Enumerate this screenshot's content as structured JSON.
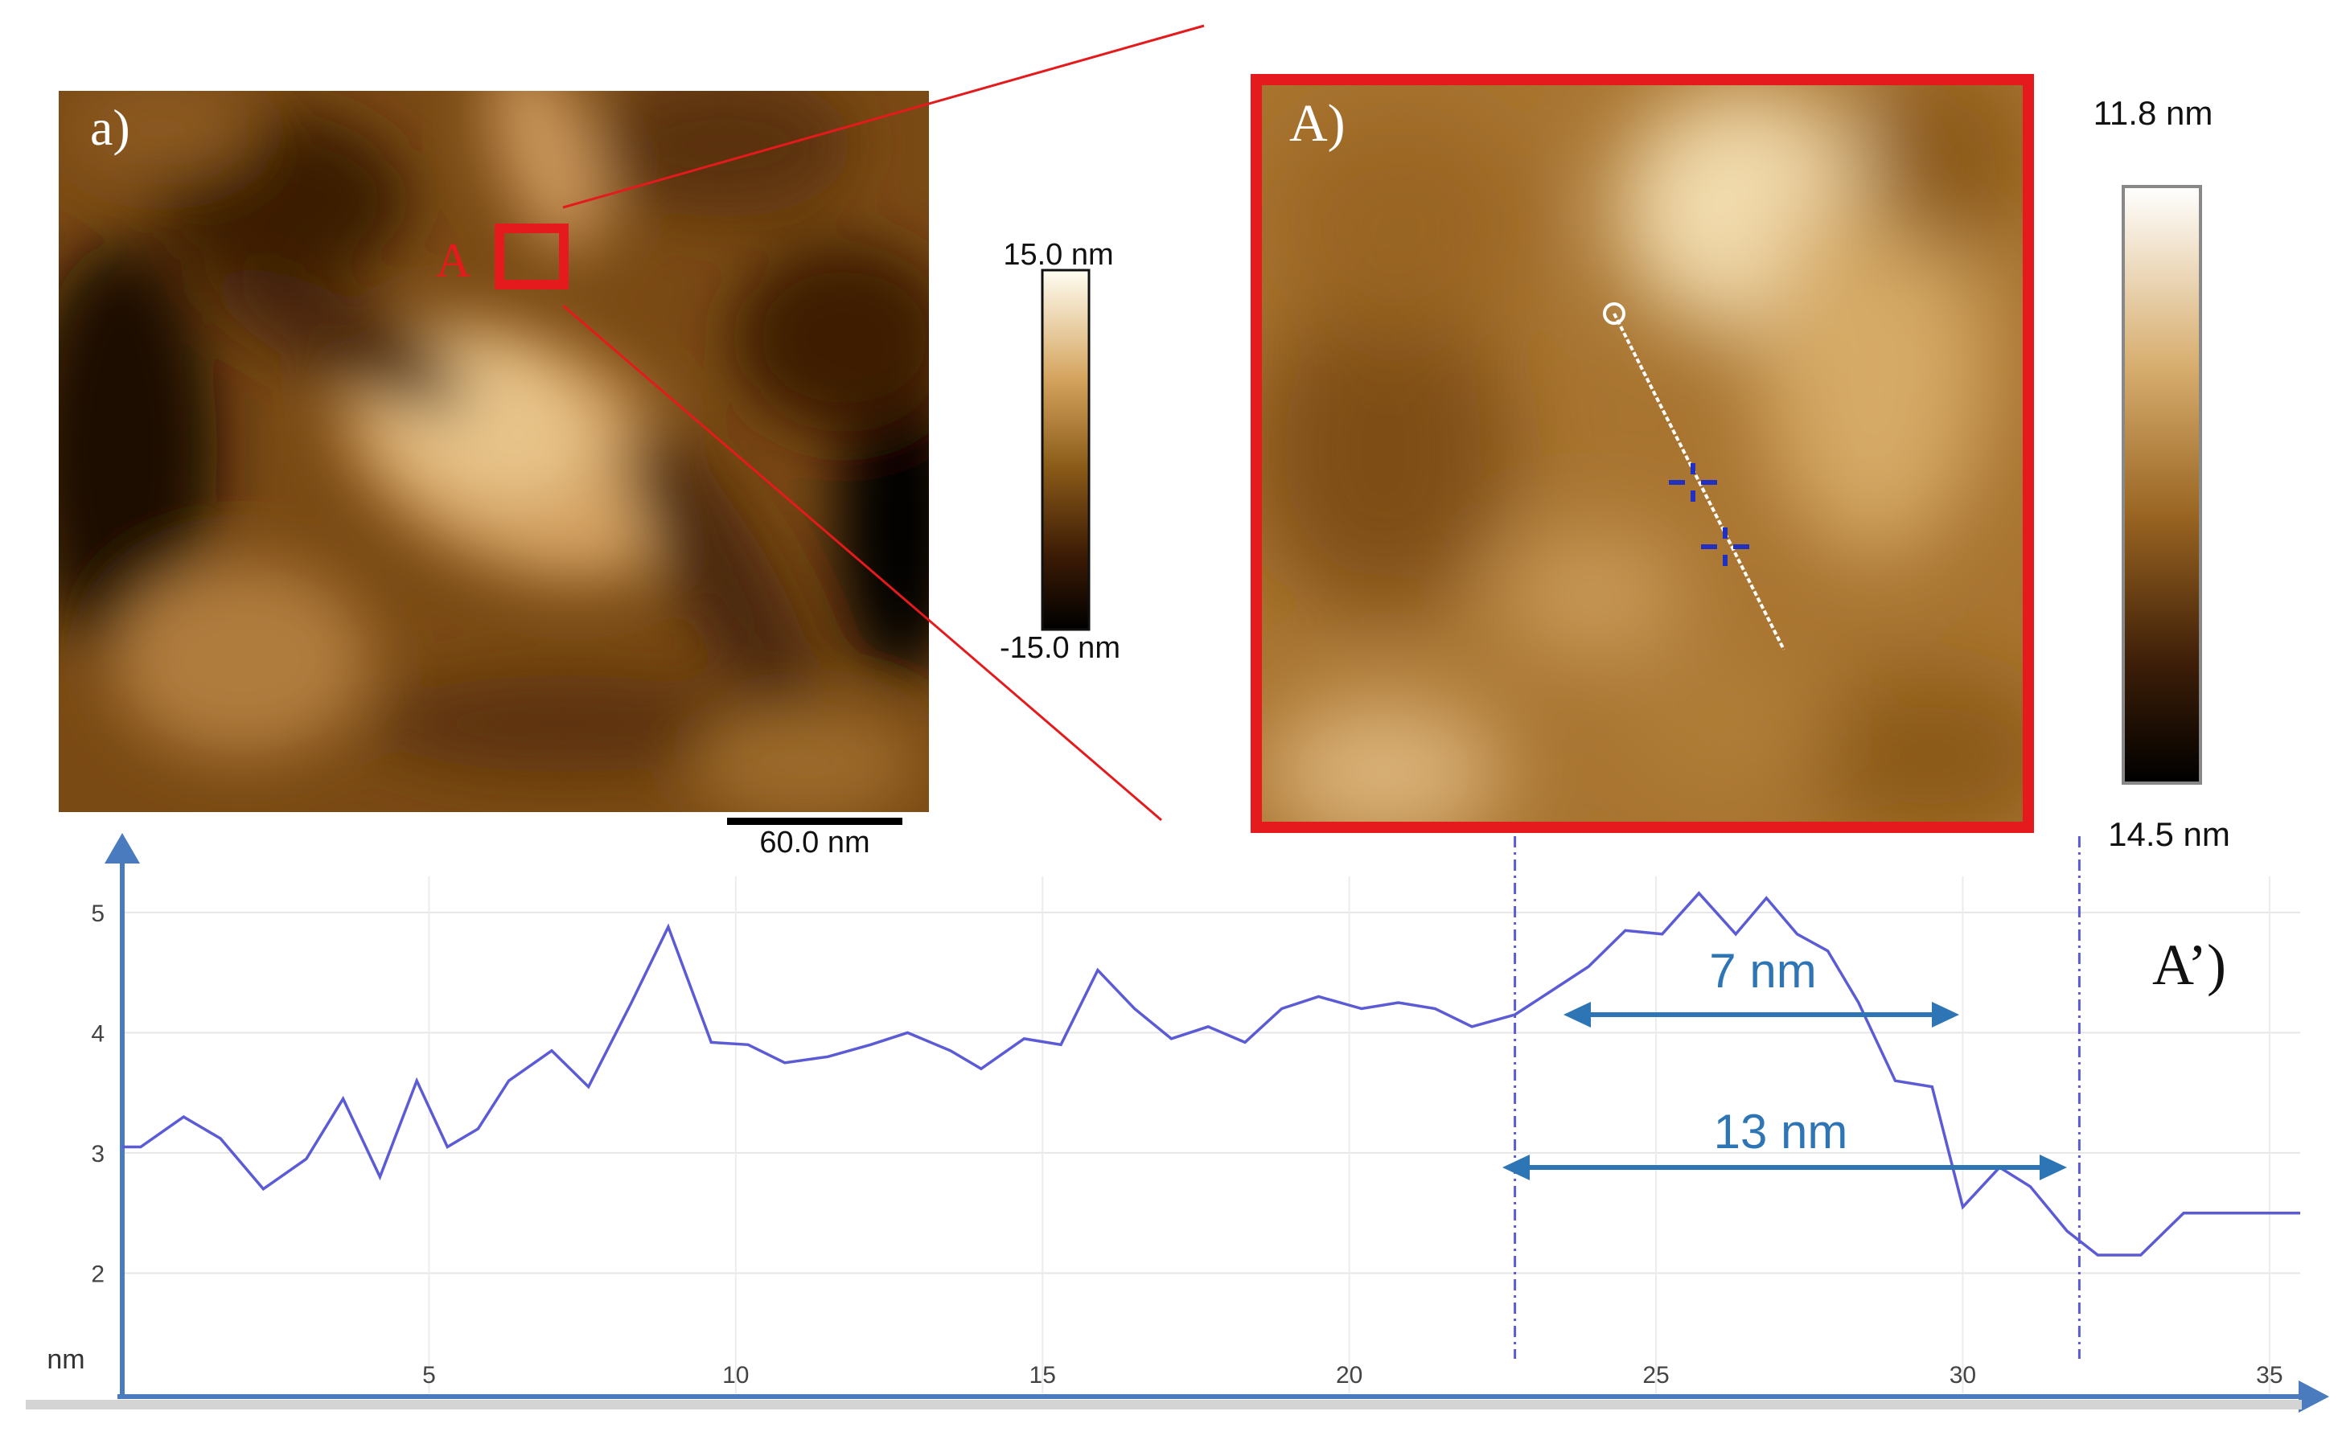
{
  "panel_a": {
    "label": "a)",
    "region_label": "A",
    "scale_bar": "60.0 nm",
    "colorbar": {
      "top": "15.0 nm",
      "bottom": "-15.0 nm"
    }
  },
  "panel_A": {
    "label": "A)",
    "colorbar": {
      "top": "11.8 nm",
      "bottom": "14.5 nm"
    }
  },
  "profile": {
    "label": "A’)",
    "annotation_short": "7 nm",
    "annotation_long": "13 nm"
  },
  "colors": {
    "profile_line": "#5b5bd6",
    "axis": "#4a7bbf",
    "annotation": "#2e75b6",
    "highlight": "#e41a1c"
  },
  "chart_data": {
    "type": "line",
    "title": "",
    "xlabel": "",
    "ylabel": "nm",
    "xlim": [
      0,
      35.5
    ],
    "ylim": [
      1.0,
      5.3
    ],
    "xticks": [
      5,
      10,
      15,
      20,
      25,
      30,
      35
    ],
    "yticks": [
      2,
      3,
      4,
      5
    ],
    "series": [
      {
        "x": [
          0,
          0.3,
          1.0,
          1.6,
          2.3,
          3.0,
          3.6,
          4.2,
          4.8,
          5.3,
          5.8,
          6.3,
          7.0,
          7.6,
          8.3,
          8.9,
          9.6,
          10.2,
          10.8,
          11.5,
          12.2,
          12.8,
          13.5,
          14.0,
          14.7,
          15.3,
          15.9,
          16.5,
          17.1,
          17.7,
          18.3,
          18.9,
          19.5,
          20.2,
          20.8,
          21.4,
          22.0,
          22.7,
          23.3,
          23.9,
          24.5,
          25.1,
          25.7,
          26.3,
          26.8,
          27.3,
          27.8,
          28.3,
          28.9,
          29.5,
          30.0,
          30.6,
          31.1,
          31.7,
          32.2,
          32.9,
          33.6,
          34.2,
          34.8,
          35.5
        ],
        "y": [
          3.05,
          3.05,
          3.3,
          3.12,
          2.7,
          2.95,
          3.45,
          2.8,
          3.6,
          3.05,
          3.2,
          3.6,
          3.85,
          3.55,
          4.25,
          4.88,
          3.92,
          3.9,
          3.75,
          3.8,
          3.9,
          4.0,
          3.85,
          3.7,
          3.95,
          3.9,
          4.52,
          4.2,
          3.95,
          4.05,
          3.92,
          4.2,
          4.3,
          4.2,
          4.25,
          4.2,
          4.05,
          4.15,
          4.35,
          4.55,
          4.85,
          4.82,
          5.16,
          4.82,
          5.12,
          4.82,
          4.68,
          4.25,
          3.6,
          3.55,
          2.55,
          2.88,
          2.72,
          2.35,
          2.15,
          2.15,
          2.5,
          2.5,
          2.5,
          2.5
        ]
      }
    ],
    "markers": {
      "x_start": 22.7,
      "x_end": 31.9
    },
    "grid": true,
    "legend": "none"
  }
}
